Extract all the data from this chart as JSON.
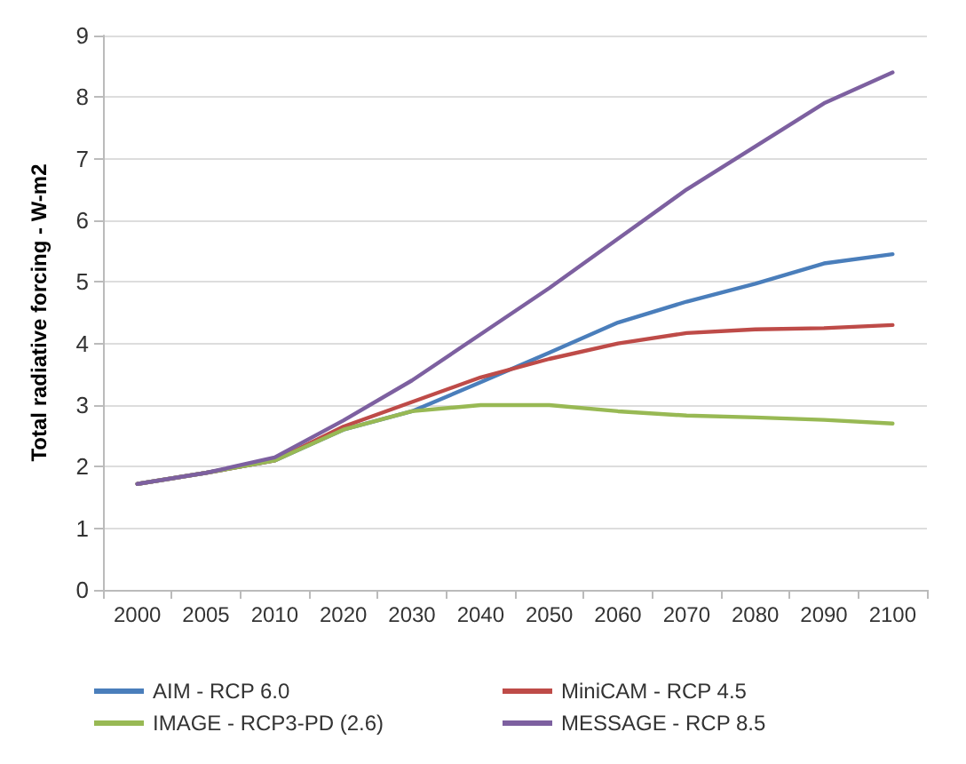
{
  "chart_data": {
    "type": "line",
    "ylabel": "Total radiative forcing - W-m2",
    "categories": [
      "2000",
      "2005",
      "2010",
      "2020",
      "2030",
      "2040",
      "2050",
      "2060",
      "2070",
      "2080",
      "2090",
      "2100"
    ],
    "ylim": [
      0,
      9
    ],
    "yticks": [
      0,
      1,
      2,
      3,
      4,
      5,
      6,
      7,
      8,
      9
    ],
    "grid": "y",
    "legend": "bottom",
    "marker": "none",
    "line_style": "solid",
    "series": [
      {
        "name": "AIM - RCP 6.0",
        "color": "#4a7ebb",
        "values": [
          1.72,
          1.9,
          2.1,
          2.6,
          2.9,
          3.37,
          3.85,
          4.34,
          4.68,
          4.97,
          5.3,
          5.45
        ]
      },
      {
        "name": "MiniCAM - RCP 4.5",
        "color": "#be4b48",
        "values": [
          1.72,
          1.9,
          2.1,
          2.65,
          3.05,
          3.45,
          3.75,
          4.0,
          4.17,
          4.23,
          4.25,
          4.3
        ]
      },
      {
        "name": "IMAGE - RCP3-PD (2.6)",
        "color": "#98b954",
        "values": [
          1.72,
          1.9,
          2.1,
          2.6,
          2.9,
          3.0,
          3.0,
          2.9,
          2.83,
          2.8,
          2.76,
          2.7
        ]
      },
      {
        "name": "MESSAGE - RCP 8.5",
        "color": "#7d60a0",
        "values": [
          1.72,
          1.9,
          2.15,
          2.75,
          3.4,
          4.15,
          4.9,
          5.7,
          6.5,
          7.2,
          7.9,
          8.4
        ]
      }
    ]
  }
}
